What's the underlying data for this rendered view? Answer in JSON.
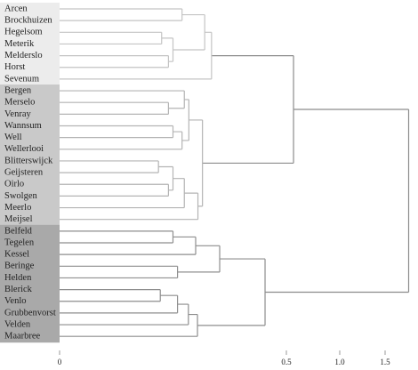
{
  "chart_data": {
    "type": "dendrogram",
    "xlim": [
      0,
      1.8
    ],
    "xticks": [
      0,
      0.5,
      {
        "value": 1,
        "label": "1.0"
      },
      1.5
    ],
    "tree": {
      "height": 1.765,
      "color": "#8c8c8c",
      "children": [
        {
          "height": 0.567,
          "children": [
            {
              "height": 0.335,
              "color": "#c4c4c4",
              "band": "#ececec",
              "children": [
                {
                  "height": 0.32,
                  "children": [
                    {
                      "height": 0.27,
                      "children": [
                        "Arcen",
                        "Brockhuizen"
                      ]
                    },
                    {
                      "height": 0.25,
                      "children": [
                        {
                          "height": 0.225,
                          "children": [
                            "Hegelsom",
                            "Meterik"
                          ]
                        },
                        {
                          "height": 0.24,
                          "children": [
                            "Melderslo",
                            "Horst"
                          ]
                        }
                      ]
                    }
                  ]
                },
                "Sevenum"
              ]
            },
            {
              "height": 0.315,
              "color": "#b4b4b4",
              "band": "#c9c9c9",
              "children": [
                {
                  "height": 0.285,
                  "children": [
                    {
                      "height": 0.275,
                      "children": [
                        "Bergen",
                        {
                          "height": 0.24,
                          "children": [
                            "Merselo",
                            "Venray"
                          ]
                        }
                      ]
                    },
                    {
                      "height": 0.27,
                      "children": [
                        {
                          "height": 0.25,
                          "children": [
                            "Wannsum",
                            "Well"
                          ]
                        },
                        "Wellerlooi"
                      ]
                    }
                  ]
                },
                {
                  "height": 0.305,
                  "children": [
                    {
                      "height": 0.275,
                      "children": [
                        {
                          "height": 0.25,
                          "children": [
                            {
                              "height": 0.218,
                              "children": [
                                "Blitterswijck",
                                "Geijsteren"
                              ]
                            },
                            {
                              "height": 0.24,
                              "children": [
                                "Oirlo",
                                "Swolgen"
                              ]
                            }
                          ]
                        },
                        "Meerlo"
                      ]
                    },
                    "Meijsel"
                  ]
                }
              ]
            }
          ]
        },
        {
          "height": 0.453,
          "color": "#8e8e8e",
          "band": "#a9a9a9",
          "children": [
            {
              "height": 0.353,
              "children": [
                {
                  "height": 0.3,
                  "children": [
                    {
                      "height": 0.25,
                      "children": [
                        "Belfeld",
                        "Tegelen"
                      ]
                    },
                    "Kessel"
                  ]
                },
                {
                  "height": 0.26,
                  "children": [
                    "Beringe",
                    "Helden"
                  ]
                }
              ]
            },
            {
              "height": 0.304,
              "children": [
                {
                  "height": 0.284,
                  "children": [
                    {
                      "height": 0.26,
                      "children": [
                        {
                          "height": 0.222,
                          "children": [
                            "Blerick",
                            "Venlo"
                          ]
                        },
                        "Grubbenvorst"
                      ]
                    },
                    "Velden"
                  ]
                },
                "Maarbree"
              ]
            }
          ]
        }
      ]
    }
  }
}
